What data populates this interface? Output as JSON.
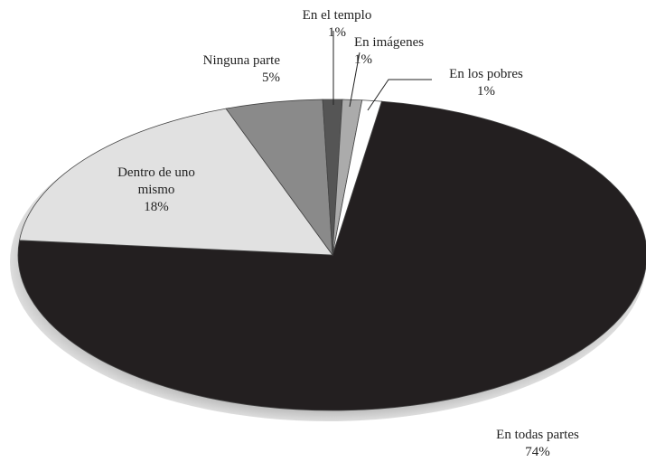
{
  "chart_data": {
    "type": "pie",
    "categories": [
      "En todas partes",
      "Dentro de uno mismo",
      "Ninguna parte",
      "En el templo",
      "En imágenes",
      "En los pobres"
    ],
    "values": [
      74,
      18,
      5,
      1,
      1,
      1
    ],
    "value_labels": [
      "74%",
      "18%",
      "5%",
      "1%",
      "1%",
      "1%"
    ],
    "colors": [
      "#231f20",
      "#e1e1e1",
      "#8a8a8a",
      "#555555",
      "#ababab",
      "#ffffff"
    ]
  }
}
